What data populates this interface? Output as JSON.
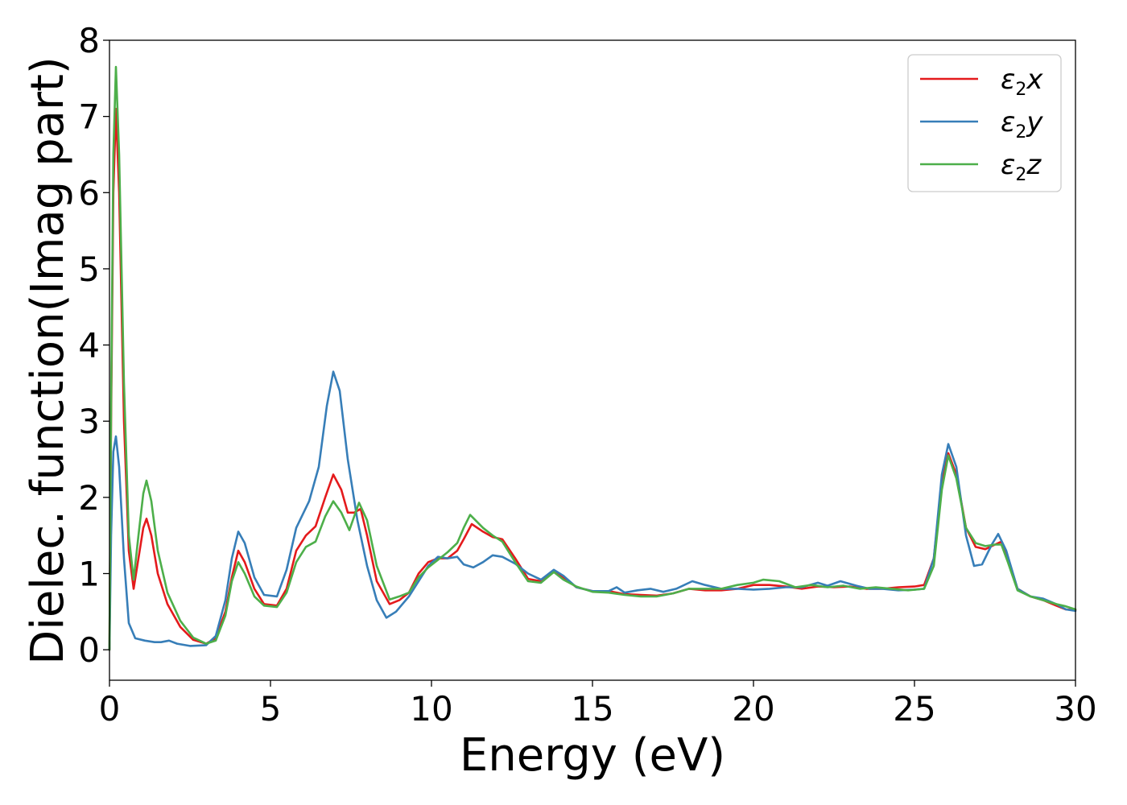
{
  "chart_data": {
    "type": "line",
    "title": "",
    "xlabel": "Energy (eV)",
    "ylabel": "Dielec. function(Imag part)",
    "xlim": [
      0,
      30
    ],
    "ylim": [
      -0.4,
      8
    ],
    "xticks": [
      0,
      5,
      10,
      15,
      20,
      25,
      30
    ],
    "yticks": [
      0,
      1,
      2,
      3,
      4,
      5,
      6,
      7,
      8
    ],
    "grid": false,
    "legend_position": "top-right",
    "series": [
      {
        "name": "ε2x",
        "legend_main": "ε",
        "legend_sub": "2",
        "legend_tail": "x",
        "color": "#e41a1c",
        "points": [
          [
            0,
            0
          ],
          [
            0.05,
            3.0
          ],
          [
            0.12,
            6.0
          ],
          [
            0.2,
            7.1
          ],
          [
            0.3,
            6.0
          ],
          [
            0.45,
            3.0
          ],
          [
            0.6,
            1.3
          ],
          [
            0.75,
            0.8
          ],
          [
            0.9,
            1.2
          ],
          [
            1.05,
            1.6
          ],
          [
            1.15,
            1.72
          ],
          [
            1.3,
            1.5
          ],
          [
            1.5,
            1.0
          ],
          [
            1.8,
            0.6
          ],
          [
            2.2,
            0.3
          ],
          [
            2.6,
            0.13
          ],
          [
            3.0,
            0.08
          ],
          [
            3.3,
            0.15
          ],
          [
            3.6,
            0.5
          ],
          [
            3.8,
            0.95
          ],
          [
            4.0,
            1.3
          ],
          [
            4.2,
            1.15
          ],
          [
            4.5,
            0.8
          ],
          [
            4.8,
            0.6
          ],
          [
            5.2,
            0.58
          ],
          [
            5.5,
            0.8
          ],
          [
            5.8,
            1.3
          ],
          [
            6.1,
            1.5
          ],
          [
            6.4,
            1.62
          ],
          [
            6.7,
            2.0
          ],
          [
            6.95,
            2.3
          ],
          [
            7.2,
            2.1
          ],
          [
            7.4,
            1.8
          ],
          [
            7.6,
            1.8
          ],
          [
            7.8,
            1.85
          ],
          [
            8.0,
            1.5
          ],
          [
            8.3,
            0.9
          ],
          [
            8.7,
            0.6
          ],
          [
            9.0,
            0.65
          ],
          [
            9.3,
            0.75
          ],
          [
            9.6,
            1.0
          ],
          [
            9.9,
            1.15
          ],
          [
            10.2,
            1.2
          ],
          [
            10.5,
            1.2
          ],
          [
            10.8,
            1.3
          ],
          [
            11.0,
            1.45
          ],
          [
            11.25,
            1.65
          ],
          [
            11.6,
            1.55
          ],
          [
            11.9,
            1.48
          ],
          [
            12.2,
            1.45
          ],
          [
            12.6,
            1.2
          ],
          [
            13.0,
            0.93
          ],
          [
            13.4,
            0.9
          ],
          [
            13.8,
            1.02
          ],
          [
            14.1,
            0.95
          ],
          [
            14.5,
            0.82
          ],
          [
            15.0,
            0.77
          ],
          [
            15.5,
            0.77
          ],
          [
            16.0,
            0.73
          ],
          [
            16.5,
            0.72
          ],
          [
            17.0,
            0.71
          ],
          [
            17.5,
            0.74
          ],
          [
            18.0,
            0.8
          ],
          [
            18.5,
            0.78
          ],
          [
            19.0,
            0.78
          ],
          [
            19.5,
            0.8
          ],
          [
            20.0,
            0.85
          ],
          [
            20.5,
            0.85
          ],
          [
            21.0,
            0.83
          ],
          [
            21.5,
            0.8
          ],
          [
            22.0,
            0.83
          ],
          [
            22.5,
            0.82
          ],
          [
            23.0,
            0.83
          ],
          [
            23.5,
            0.8
          ],
          [
            24.0,
            0.8
          ],
          [
            24.5,
            0.82
          ],
          [
            25.0,
            0.83
          ],
          [
            25.3,
            0.85
          ],
          [
            25.6,
            1.2
          ],
          [
            25.85,
            2.2
          ],
          [
            26.05,
            2.58
          ],
          [
            26.3,
            2.3
          ],
          [
            26.6,
            1.6
          ],
          [
            26.9,
            1.35
          ],
          [
            27.2,
            1.32
          ],
          [
            27.5,
            1.38
          ],
          [
            27.7,
            1.42
          ],
          [
            27.9,
            1.2
          ],
          [
            28.2,
            0.8
          ],
          [
            28.6,
            0.7
          ],
          [
            29.0,
            0.65
          ],
          [
            29.4,
            0.58
          ],
          [
            29.7,
            0.53
          ],
          [
            30.0,
            0.52
          ]
        ]
      },
      {
        "name": "ε2y",
        "legend_main": "ε",
        "legend_sub": "2",
        "legend_tail": "y",
        "color": "#377eb8",
        "points": [
          [
            0,
            0
          ],
          [
            0.05,
            1.5
          ],
          [
            0.12,
            2.6
          ],
          [
            0.2,
            2.8
          ],
          [
            0.3,
            2.4
          ],
          [
            0.45,
            1.2
          ],
          [
            0.6,
            0.35
          ],
          [
            0.8,
            0.15
          ],
          [
            1.1,
            0.12
          ],
          [
            1.4,
            0.1
          ],
          [
            1.6,
            0.1
          ],
          [
            1.85,
            0.12
          ],
          [
            2.1,
            0.08
          ],
          [
            2.5,
            0.05
          ],
          [
            3.0,
            0.06
          ],
          [
            3.3,
            0.18
          ],
          [
            3.6,
            0.65
          ],
          [
            3.8,
            1.2
          ],
          [
            4.0,
            1.55
          ],
          [
            4.2,
            1.4
          ],
          [
            4.5,
            0.95
          ],
          [
            4.8,
            0.72
          ],
          [
            5.2,
            0.7
          ],
          [
            5.5,
            1.05
          ],
          [
            5.8,
            1.6
          ],
          [
            6.2,
            1.95
          ],
          [
            6.5,
            2.4
          ],
          [
            6.75,
            3.2
          ],
          [
            6.95,
            3.65
          ],
          [
            7.15,
            3.4
          ],
          [
            7.4,
            2.5
          ],
          [
            7.7,
            1.7
          ],
          [
            8.0,
            1.1
          ],
          [
            8.3,
            0.65
          ],
          [
            8.6,
            0.42
          ],
          [
            8.9,
            0.5
          ],
          [
            9.3,
            0.7
          ],
          [
            9.6,
            0.9
          ],
          [
            9.9,
            1.1
          ],
          [
            10.2,
            1.22
          ],
          [
            10.5,
            1.2
          ],
          [
            10.8,
            1.22
          ],
          [
            11.0,
            1.12
          ],
          [
            11.3,
            1.08
          ],
          [
            11.6,
            1.15
          ],
          [
            11.9,
            1.24
          ],
          [
            12.2,
            1.22
          ],
          [
            12.6,
            1.13
          ],
          [
            13.0,
            1.0
          ],
          [
            13.4,
            0.92
          ],
          [
            13.8,
            1.05
          ],
          [
            14.1,
            0.97
          ],
          [
            14.5,
            0.82
          ],
          [
            15.0,
            0.77
          ],
          [
            15.5,
            0.77
          ],
          [
            15.75,
            0.82
          ],
          [
            16.0,
            0.75
          ],
          [
            16.4,
            0.78
          ],
          [
            16.8,
            0.8
          ],
          [
            17.2,
            0.76
          ],
          [
            17.6,
            0.8
          ],
          [
            18.1,
            0.9
          ],
          [
            18.5,
            0.85
          ],
          [
            19.0,
            0.8
          ],
          [
            19.5,
            0.8
          ],
          [
            20.0,
            0.79
          ],
          [
            20.5,
            0.8
          ],
          [
            21.0,
            0.82
          ],
          [
            21.5,
            0.82
          ],
          [
            22.0,
            0.88
          ],
          [
            22.3,
            0.84
          ],
          [
            22.7,
            0.9
          ],
          [
            23.2,
            0.84
          ],
          [
            23.6,
            0.8
          ],
          [
            24.0,
            0.8
          ],
          [
            24.5,
            0.78
          ],
          [
            25.0,
            0.79
          ],
          [
            25.3,
            0.8
          ],
          [
            25.6,
            1.2
          ],
          [
            25.85,
            2.3
          ],
          [
            26.05,
            2.7
          ],
          [
            26.3,
            2.4
          ],
          [
            26.6,
            1.5
          ],
          [
            26.85,
            1.1
          ],
          [
            27.1,
            1.12
          ],
          [
            27.4,
            1.38
          ],
          [
            27.6,
            1.52
          ],
          [
            27.85,
            1.3
          ],
          [
            28.2,
            0.8
          ],
          [
            28.6,
            0.7
          ],
          [
            29.0,
            0.67
          ],
          [
            29.4,
            0.6
          ],
          [
            29.7,
            0.53
          ],
          [
            30.0,
            0.51
          ]
        ]
      },
      {
        "name": "ε2z",
        "legend_main": "ε",
        "legend_sub": "2",
        "legend_tail": "z",
        "color": "#4daf4a",
        "points": [
          [
            0,
            0
          ],
          [
            0.05,
            3.2
          ],
          [
            0.12,
            6.5
          ],
          [
            0.2,
            7.65
          ],
          [
            0.3,
            6.5
          ],
          [
            0.45,
            3.5
          ],
          [
            0.6,
            1.5
          ],
          [
            0.75,
            0.92
          ],
          [
            0.9,
            1.5
          ],
          [
            1.05,
            2.05
          ],
          [
            1.15,
            2.22
          ],
          [
            1.3,
            1.95
          ],
          [
            1.5,
            1.3
          ],
          [
            1.8,
            0.75
          ],
          [
            2.2,
            0.38
          ],
          [
            2.6,
            0.16
          ],
          [
            3.0,
            0.08
          ],
          [
            3.3,
            0.12
          ],
          [
            3.6,
            0.45
          ],
          [
            3.8,
            0.9
          ],
          [
            4.0,
            1.15
          ],
          [
            4.2,
            1.0
          ],
          [
            4.5,
            0.7
          ],
          [
            4.8,
            0.58
          ],
          [
            5.2,
            0.56
          ],
          [
            5.5,
            0.75
          ],
          [
            5.8,
            1.15
          ],
          [
            6.1,
            1.35
          ],
          [
            6.4,
            1.42
          ],
          [
            6.7,
            1.75
          ],
          [
            6.95,
            1.95
          ],
          [
            7.2,
            1.8
          ],
          [
            7.45,
            1.57
          ],
          [
            7.6,
            1.75
          ],
          [
            7.75,
            1.93
          ],
          [
            8.0,
            1.7
          ],
          [
            8.3,
            1.1
          ],
          [
            8.7,
            0.66
          ],
          [
            9.0,
            0.7
          ],
          [
            9.3,
            0.75
          ],
          [
            9.6,
            0.95
          ],
          [
            9.9,
            1.08
          ],
          [
            10.2,
            1.18
          ],
          [
            10.5,
            1.28
          ],
          [
            10.8,
            1.4
          ],
          [
            11.0,
            1.6
          ],
          [
            11.2,
            1.77
          ],
          [
            11.6,
            1.6
          ],
          [
            11.9,
            1.5
          ],
          [
            12.2,
            1.42
          ],
          [
            12.6,
            1.15
          ],
          [
            13.0,
            0.9
          ],
          [
            13.4,
            0.88
          ],
          [
            13.8,
            1.02
          ],
          [
            14.1,
            0.92
          ],
          [
            14.5,
            0.83
          ],
          [
            15.0,
            0.76
          ],
          [
            15.5,
            0.75
          ],
          [
            16.0,
            0.72
          ],
          [
            16.5,
            0.7
          ],
          [
            17.0,
            0.7
          ],
          [
            17.5,
            0.74
          ],
          [
            18.0,
            0.8
          ],
          [
            18.5,
            0.8
          ],
          [
            19.0,
            0.8
          ],
          [
            19.5,
            0.85
          ],
          [
            20.0,
            0.88
          ],
          [
            20.3,
            0.92
          ],
          [
            20.8,
            0.9
          ],
          [
            21.3,
            0.82
          ],
          [
            21.8,
            0.85
          ],
          [
            22.3,
            0.82
          ],
          [
            22.8,
            0.84
          ],
          [
            23.3,
            0.8
          ],
          [
            23.8,
            0.82
          ],
          [
            24.3,
            0.8
          ],
          [
            24.8,
            0.78
          ],
          [
            25.3,
            0.8
          ],
          [
            25.6,
            1.1
          ],
          [
            25.85,
            2.1
          ],
          [
            26.05,
            2.55
          ],
          [
            26.3,
            2.25
          ],
          [
            26.6,
            1.6
          ],
          [
            26.9,
            1.4
          ],
          [
            27.2,
            1.36
          ],
          [
            27.5,
            1.38
          ],
          [
            27.7,
            1.38
          ],
          [
            27.9,
            1.15
          ],
          [
            28.2,
            0.78
          ],
          [
            28.6,
            0.7
          ],
          [
            29.0,
            0.65
          ],
          [
            29.4,
            0.6
          ],
          [
            29.7,
            0.57
          ],
          [
            30.0,
            0.53
          ]
        ]
      }
    ]
  }
}
